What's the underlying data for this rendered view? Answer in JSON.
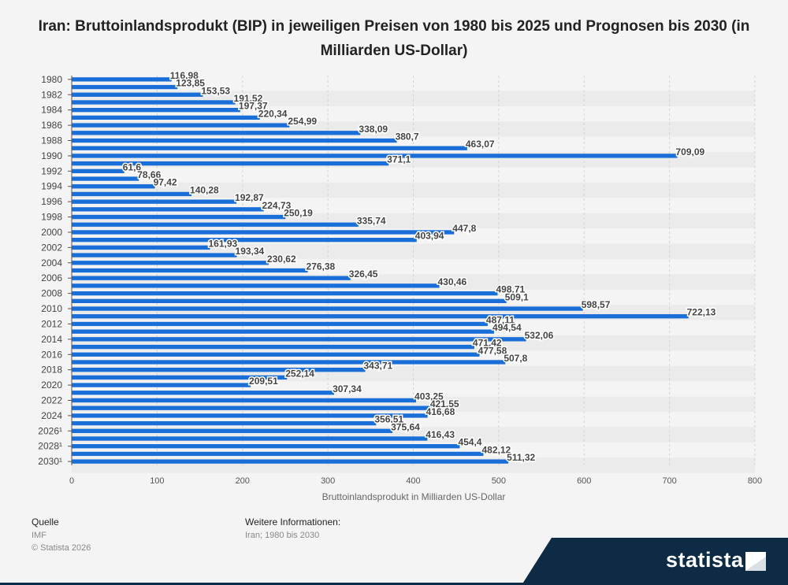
{
  "title": "Iran: Bruttoinlandsprodukt (BIP) in jeweiligen Preisen von 1980 bis 2025 und Prognosen bis 2030 (in Milliarden US-Dollar)",
  "footer": {
    "source_label": "Quelle",
    "source_value": "IMF",
    "copyright": "© Statista 2026",
    "info_label": "Weitere Informationen:",
    "info_value": "Iran; 1980 bis 2030"
  },
  "brand": {
    "name": "statista"
  },
  "colors": {
    "bar": "#1a6ed8",
    "grid": "#d4d4d4",
    "stripe": "#ebebeb"
  },
  "chart_data": {
    "type": "bar",
    "orientation": "horizontal",
    "title": "Iran: Bruttoinlandsprodukt (BIP) in jeweiligen Preisen von 1980 bis 2025 und Prognosen bis 2030 (in Milliarden US-Dollar)",
    "xlabel": "Bruttoinlandsprodukt in Milliarden US-Dollar",
    "ylabel": "",
    "xlim": [
      0,
      800
    ],
    "xticks": [
      "0",
      "100",
      "200",
      "300",
      "400",
      "500",
      "600",
      "700",
      "800"
    ],
    "grid": true,
    "categories": [
      "1980",
      "1981",
      "1982",
      "1983",
      "1984",
      "1985",
      "1986",
      "1987",
      "1988",
      "1989",
      "1990",
      "1991",
      "1992",
      "1993",
      "1994",
      "1995",
      "1996",
      "1997",
      "1998",
      "1999",
      "2000",
      "2001",
      "2002",
      "2003",
      "2004",
      "2005",
      "2006",
      "2007",
      "2008",
      "2009",
      "2010",
      "2011",
      "2012",
      "2013",
      "2014",
      "2015",
      "2016",
      "2017",
      "2018",
      "2019",
      "2020",
      "2021",
      "2022",
      "2023",
      "2024",
      "2025",
      "2026¹",
      "2027¹",
      "2028¹",
      "2029¹",
      "2030¹"
    ],
    "visible_category_labels": [
      "1980",
      "1982",
      "1984",
      "1986",
      "1988",
      "1990",
      "1992",
      "1994",
      "1996",
      "1998",
      "2000",
      "2002",
      "2004",
      "2006",
      "2008",
      "2010",
      "2012",
      "2014",
      "2016",
      "2018",
      "2020",
      "2022",
      "2024",
      "2026¹",
      "2028¹",
      "2030¹"
    ],
    "values": [
      116.98,
      123.85,
      153.53,
      191.52,
      197.37,
      220.34,
      254.99,
      338.09,
      380.7,
      463.07,
      709.09,
      371.1,
      61.6,
      78.66,
      97.42,
      140.28,
      192.87,
      224.73,
      250.19,
      335.74,
      447.8,
      403.94,
      161.93,
      193.34,
      230.62,
      276.38,
      326.45,
      430.46,
      498.71,
      509.1,
      598.57,
      722.13,
      487.11,
      494.54,
      532.06,
      471.42,
      477.58,
      507.8,
      343.71,
      252.14,
      209.51,
      307.34,
      403.25,
      421.55,
      416.68,
      356.51,
      375.64,
      416.43,
      454.4,
      482.12,
      511.32
    ],
    "value_labels": [
      "116,98",
      "123,85",
      "153,53",
      "191,52",
      "197,37",
      "220,34",
      "254,99",
      "338,09",
      "380,7",
      "463,07",
      "709,09",
      "371,1",
      "61,6",
      "78,66",
      "97,42",
      "140,28",
      "192,87",
      "224,73",
      "250,19",
      "335,74",
      "447,8",
      "403,94",
      "161,93",
      "193,34",
      "230,62",
      "276,38",
      "326,45",
      "430,46",
      "498,71",
      "509,1",
      "598,57",
      "722,13",
      "487,11",
      "494,54",
      "532,06",
      "471,42",
      "477,58",
      "507,8",
      "343,71",
      "252,14",
      "209,51",
      "307,34",
      "403,25",
      "421,55",
      "416,68",
      "356,51",
      "375,64",
      "416,43",
      "454,4",
      "482,12",
      "511,32"
    ]
  }
}
